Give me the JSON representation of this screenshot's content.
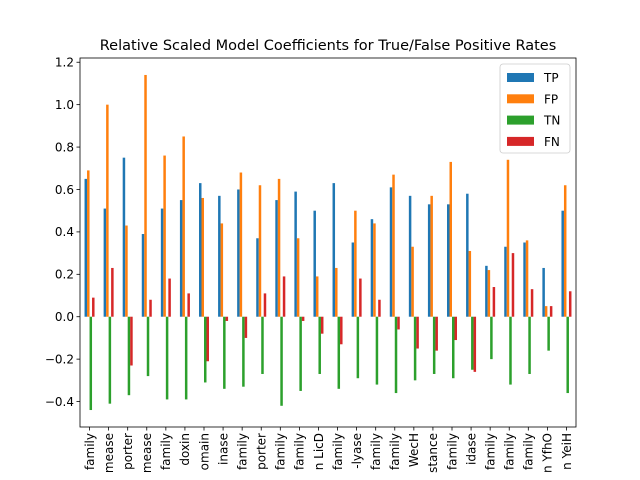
{
  "chart_data": {
    "type": "bar",
    "title": "Relative Scaled Model Coefficients for True/False Positive Rates",
    "xlabel": "",
    "ylabel": "",
    "ylim": [
      -0.52,
      1.22
    ],
    "yticks": [
      -0.4,
      -0.2,
      0.0,
      0.2,
      0.4,
      0.6,
      0.8,
      1.0,
      1.2
    ],
    "ytick_labels": [
      "−0.4",
      "−0.2",
      "0.0",
      "0.2",
      "0.4",
      "0.6",
      "0.8",
      "1.0",
      "1.2"
    ],
    "grid": false,
    "legend_position": "top-right",
    "categories": [
      "family",
      "mease",
      "porter",
      "mease",
      "family",
      "doxin",
      "omain",
      "inase",
      "family",
      "porter",
      "family",
      "family",
      "n LicD",
      "family",
      "-lyase",
      "family",
      "family",
      "WecH",
      "stance",
      "family",
      "idase",
      "family",
      "family",
      "family",
      "n YfhO",
      "n YeiH"
    ],
    "series": [
      {
        "name": "TP",
        "color": "#1f77b4",
        "values": [
          0.65,
          0.51,
          0.75,
          0.39,
          0.51,
          0.55,
          0.63,
          0.57,
          0.6,
          0.37,
          0.55,
          0.59,
          0.5,
          0.63,
          0.35,
          0.46,
          0.61,
          0.57,
          0.53,
          0.53,
          0.58,
          0.24,
          0.33,
          0.35,
          0.23,
          0.5
        ]
      },
      {
        "name": "FP",
        "color": "#ff7f0e",
        "values": [
          0.69,
          1.0,
          0.43,
          1.14,
          0.76,
          0.85,
          0.56,
          0.44,
          0.68,
          0.62,
          0.65,
          0.37,
          0.19,
          0.23,
          0.5,
          0.44,
          0.67,
          0.33,
          0.57,
          0.73,
          0.31,
          0.22,
          0.74,
          0.36,
          0.05,
          0.62
        ]
      },
      {
        "name": "TN",
        "color": "#2ca02c",
        "values": [
          -0.44,
          -0.41,
          -0.37,
          -0.28,
          -0.39,
          -0.39,
          -0.31,
          -0.34,
          -0.33,
          -0.27,
          -0.42,
          -0.35,
          -0.27,
          -0.34,
          -0.29,
          -0.32,
          -0.36,
          -0.3,
          -0.27,
          -0.29,
          -0.25,
          -0.2,
          -0.32,
          -0.27,
          -0.16,
          -0.36
        ]
      },
      {
        "name": "FN",
        "color": "#d62728",
        "values": [
          0.09,
          0.23,
          -0.23,
          0.08,
          0.18,
          0.11,
          -0.21,
          -0.02,
          -0.1,
          0.11,
          0.19,
          -0.02,
          -0.08,
          -0.13,
          0.18,
          0.08,
          -0.06,
          -0.15,
          -0.16,
          -0.11,
          -0.26,
          0.14,
          0.3,
          0.13,
          0.05,
          0.12
        ]
      }
    ]
  }
}
